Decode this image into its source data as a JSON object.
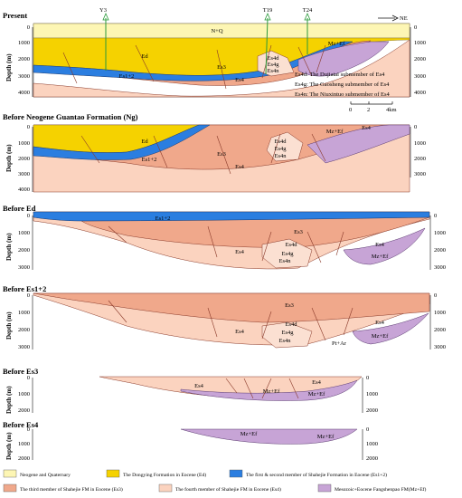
{
  "header": {
    "wells": [
      "Y3",
      "T19",
      "T24"
    ],
    "direction": "NE"
  },
  "key_notes": [
    "Es4d: The Dujiatai submember of Es4",
    "Es4g: The Gaosheng submember of Es4",
    "Es4n: The Niuxintuo submember of Es4"
  ],
  "scale_bar": {
    "ticks": [
      "0",
      "2",
      "4km"
    ]
  },
  "depth_label": "Depth (m)",
  "panels": [
    {
      "title": "Present",
      "left_ticks": [
        "0",
        "1000",
        "2000",
        "3000",
        "4000"
      ],
      "right_ticks": [
        "0",
        "1000",
        "2000",
        "3000",
        "4000"
      ],
      "units": [
        "N+Q",
        "Ed",
        "Es1+2",
        "Es3",
        "Es4",
        "Es4d",
        "Es4g",
        "Es4n",
        "Mz+Ef"
      ]
    },
    {
      "title": "Before Neogene Guantao Formation (Ng)",
      "left_ticks": [
        "0",
        "1000",
        "2000",
        "3000",
        "4000"
      ],
      "right_ticks": [
        "0",
        "1000",
        "2000",
        "3000"
      ],
      "units": [
        "Ed",
        "Es1+2",
        "Es3",
        "Es4",
        "Es4d",
        "Es4g",
        "Es4n",
        "Mz+Ef",
        "Es4"
      ]
    },
    {
      "title": "Before Ed",
      "left_ticks": [
        "0",
        "1000",
        "2000",
        "3000"
      ],
      "right_ticks": [
        "0",
        "1000",
        "2000",
        "3000"
      ],
      "units": [
        "Es1+2",
        "Es3",
        "Es4",
        "Es4d",
        "Es4g",
        "Es4n",
        "Mz+Ef",
        "Es4"
      ]
    },
    {
      "title": "Before Es1+2",
      "left_ticks": [
        "0",
        "1000",
        "2000",
        "3000"
      ],
      "right_ticks": [
        "0",
        "1000",
        "2000",
        "3000"
      ],
      "units": [
        "Es3",
        "Es4",
        "Es4d",
        "Es4g",
        "Es4n",
        "Pt+Ar",
        "Mz+Ef",
        "Es4"
      ]
    },
    {
      "title": "Before Es3",
      "left_ticks": [
        "0",
        "1000",
        "2000"
      ],
      "right_ticks": [
        "0",
        "1000",
        "2000"
      ],
      "units": [
        "Es4",
        "Mz+Ef",
        "Mz+Ef",
        "Es4"
      ]
    },
    {
      "title": "Before Es4",
      "left_ticks": [
        "0",
        "1000",
        "2000"
      ],
      "right_ticks": [
        "0",
        "1000",
        "2000"
      ],
      "units": [
        "Mz+Ef",
        "Mz+Ef"
      ]
    }
  ],
  "legend": [
    {
      "label": "Neogene and Quaternary",
      "color": "#fdf6b4"
    },
    {
      "label": "The Dongying Formation in Eocene (Ed)",
      "color": "#f5d200"
    },
    {
      "label": "The  first & second member of Shahejie Formation in Eocene (Es1+2)",
      "color": "#2b7ee0"
    },
    {
      "label": "The  third member of Shahejie FM in Eocene (Es3)",
      "color": "#f0a88b"
    },
    {
      "label": "The  fourth member of Shahejie FM in Eocene (Es4)",
      "color": "#fbd3bf"
    },
    {
      "label": "Mesozoic+Eocene Fangshenpao FM(Mz+Ef)",
      "color": "#c7a4d6"
    }
  ],
  "colors": {
    "nq": "#fdf6b4",
    "ed": "#f5d200",
    "es12": "#2b7ee0",
    "es3": "#f0a88b",
    "es4": "#fbd3bf",
    "mzef": "#c7a4d6",
    "well": "#2a9a3a"
  }
}
